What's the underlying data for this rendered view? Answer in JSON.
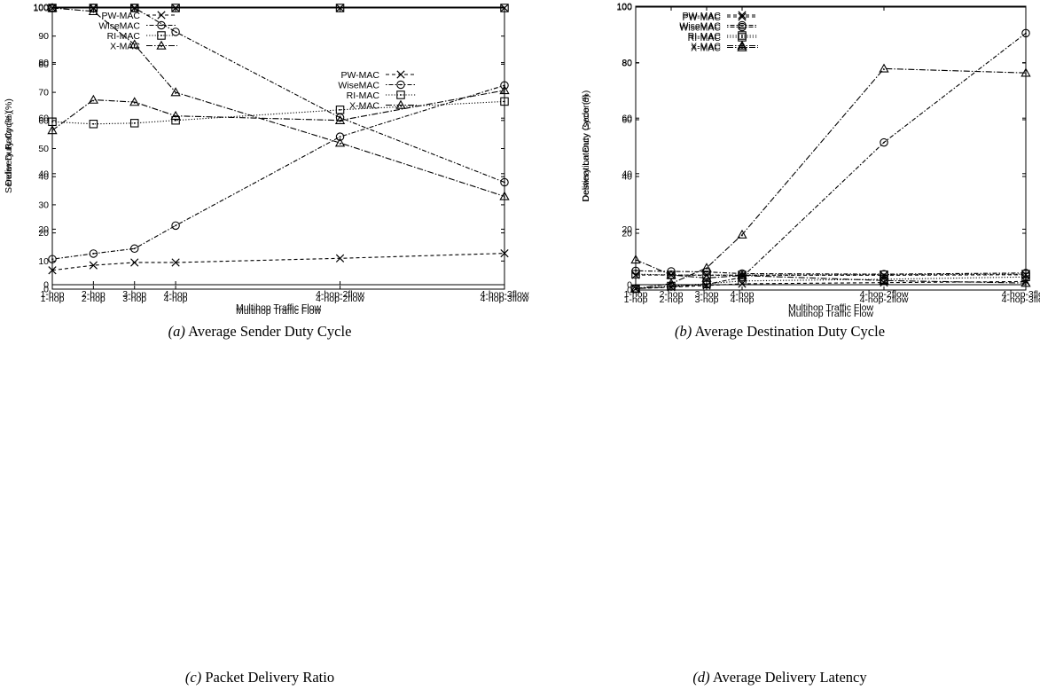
{
  "chart_data": [
    {
      "type": "line",
      "caption_label": "(a)",
      "caption_text": "Average Sender Duty Cycle",
      "xlabel": "Multihop Traffic Flow",
      "ylabel": "Sender Duty Cycle (%)",
      "categories": [
        "1-hop",
        "2-hop",
        "3-hop",
        "4-hop",
        "4-hop-2flow",
        "4-hop-3flow"
      ],
      "x": [
        1,
        2,
        3,
        4,
        8,
        12
      ],
      "xlim": [
        1,
        12
      ],
      "ylim": [
        0,
        100
      ],
      "yticks": [
        0,
        20,
        40,
        60,
        80,
        100
      ],
      "legend_position": "top-left",
      "series": [
        {
          "name": "PW-MAC",
          "marker": "x",
          "dash": "4,3",
          "values": [
            5.2,
            7.0,
            8.0,
            8.0,
            9.5,
            11.3
          ]
        },
        {
          "name": "WiseMAC",
          "marker": "circle",
          "dash": "1.5,2,5,2",
          "values": [
            9.2,
            11.2,
            13.0,
            21.3,
            53.3,
            71.8
          ]
        },
        {
          "name": "RI-MAC",
          "marker": "square",
          "dash": "1.2,2",
          "values": [
            58.7,
            57.9,
            58.2,
            59.2,
            63.0,
            66.0
          ]
        },
        {
          "name": "X-MAC",
          "marker": "triangle",
          "dash": "7,2,1.5,2",
          "values": [
            55.6,
            66.6,
            65.8,
            60.8,
            59.2,
            70.0
          ]
        }
      ]
    },
    {
      "type": "line",
      "caption_label": "(b)",
      "caption_text": "Average Destination Duty Cycle",
      "xlabel": "Multihop Traffic Flow",
      "ylabel": "Destination Duty Cycle (%)",
      "categories": [
        "1-hop",
        "2-hop",
        "3-hop",
        "4-hop",
        "4-hop-2flow",
        "4-hop-3flow"
      ],
      "x": [
        1,
        2,
        3,
        4,
        8,
        12
      ],
      "xlim": [
        1,
        12
      ],
      "ylim": [
        0,
        100
      ],
      "yticks": [
        0,
        20,
        40,
        60,
        80,
        100
      ],
      "legend_position": "top-left",
      "series": [
        {
          "name": "PW-MAC",
          "marker": "x",
          "dash": "4,3",
          "values": [
            3.5,
            3.5,
            3.4,
            3.4,
            3.4,
            3.6
          ]
        },
        {
          "name": "WiseMAC",
          "marker": "circle",
          "dash": "1.5,2,5,2",
          "values": [
            5.0,
            4.8,
            4.6,
            4.0,
            3.8,
            4.2
          ]
        },
        {
          "name": "RI-MAC",
          "marker": "square",
          "dash": "1.2,2",
          "values": [
            3.8,
            3.5,
            3.5,
            3.5,
            3.6,
            3.8
          ]
        },
        {
          "name": "X-MAC",
          "marker": "triangle",
          "dash": "7,2,1.5,2",
          "values": [
            9.0,
            3.5,
            2.4,
            3.3,
            1.5,
            0.6
          ]
        }
      ]
    },
    {
      "type": "line",
      "caption_label": "(c)",
      "caption_text": "Packet Delivery Ratio",
      "xlabel": "Multihop Traffic Flow",
      "ylabel": "Delivery Ratio (%)",
      "categories": [
        "1-hop",
        "2-hop",
        "3-hop",
        "4-hop",
        "4-hop-2flow",
        "4-hop-3flow"
      ],
      "x": [
        1,
        2,
        3,
        4,
        8,
        12
      ],
      "xlim": [
        1,
        12
      ],
      "ylim": [
        0,
        100
      ],
      "yticks": [
        0,
        10,
        20,
        30,
        40,
        50,
        60,
        70,
        80,
        90,
        100
      ],
      "legend_position": "right",
      "series": [
        {
          "name": "PW-MAC",
          "marker": "x",
          "dash": "4,3",
          "values": [
            100,
            100,
            100,
            100,
            100,
            100
          ]
        },
        {
          "name": "WiseMAC",
          "marker": "circle",
          "dash": "1.5,2,5,2",
          "values": [
            100,
            100,
            100,
            91.5,
            61,
            38
          ]
        },
        {
          "name": "RI-MAC",
          "marker": "square",
          "dash": "1.2,2",
          "values": [
            100,
            100,
            100,
            100,
            100,
            100
          ]
        },
        {
          "name": "X-MAC",
          "marker": "triangle",
          "dash": "7,2,1.5,2",
          "values": [
            100,
            98.8,
            87,
            70,
            52,
            33
          ]
        }
      ]
    },
    {
      "type": "line",
      "caption_label": "(d)",
      "caption_text": "Average Delivery Latency",
      "xlabel": "Multihop Traffic Flow",
      "ylabel": "Delivery Latency (second)",
      "categories": [
        "1-hop",
        "2-hop",
        "3-hop",
        "4-hop",
        "4-hop-2flow",
        "4-hop-3flow"
      ],
      "x": [
        1,
        2,
        3,
        4,
        8,
        12
      ],
      "xlim": [
        1,
        12
      ],
      "ylim": [
        0,
        100
      ],
      "yticks": [
        0,
        20,
        40,
        60,
        80,
        100
      ],
      "legend_position": "top-left",
      "series": [
        {
          "name": "PW-MAC",
          "marker": "x",
          "dash": "4,3",
          "values": [
            0.5,
            1.0,
            1.6,
            2.2,
            2.6,
            3.0
          ]
        },
        {
          "name": "WiseMAC",
          "marker": "circle",
          "dash": "1.5,2,5,2",
          "values": [
            0.5,
            1.2,
            2.0,
            4.5,
            52,
            90.5
          ]
        },
        {
          "name": "RI-MAC",
          "marker": "square",
          "dash": "1.2,2",
          "values": [
            0.5,
            1.4,
            2.2,
            3.2,
            3.8,
            4.6
          ]
        },
        {
          "name": "X-MAC",
          "marker": "triangle",
          "dash": "7,2,1.5,2",
          "values": [
            0.5,
            2.3,
            7.8,
            19.5,
            78,
            76.5
          ]
        }
      ]
    }
  ]
}
